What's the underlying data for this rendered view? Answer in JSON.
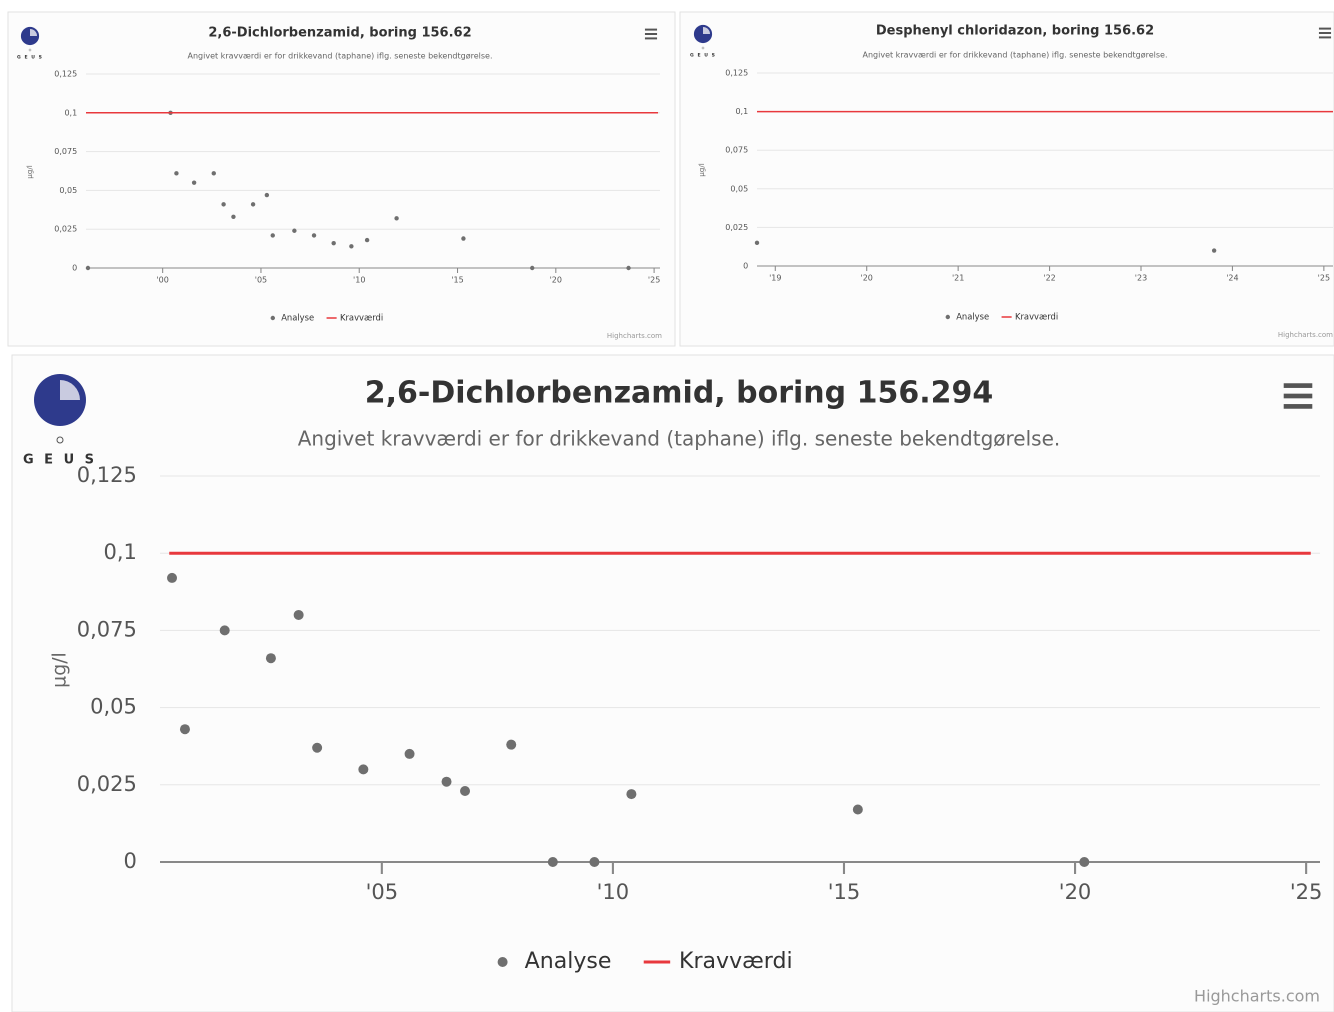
{
  "logo": "G E U S",
  "chart_data": [
    {
      "type": "scatter",
      "title": "2,6-Dichlorbenzamid, boring 156.62",
      "subtitle": "Angivet kravværdi er for drikkevand (taphane) iflg. seneste bekendtgørelse.",
      "y_label": "µg/l",
      "credits": "Highcharts.com",
      "grid": true,
      "xlim": [
        1996.1,
        2025.3
      ],
      "ylim": [
        0,
        0.125
      ],
      "xticks": [
        {
          "value": 2000,
          "label": "'00"
        },
        {
          "value": 2005,
          "label": "'05"
        },
        {
          "value": 2010,
          "label": "'10"
        },
        {
          "value": 2015,
          "label": "'15"
        },
        {
          "value": 2020,
          "label": "'20"
        },
        {
          "value": 2025,
          "label": "'25"
        }
      ],
      "yticks": [
        0,
        {
          "value": 0.025,
          "label": "0,025"
        },
        {
          "value": 0.05,
          "label": "0,05"
        },
        {
          "value": 0.075,
          "label": "0,075"
        },
        {
          "value": 0.1,
          "label": "0,1"
        },
        {
          "value": 0.125,
          "label": "0,125"
        }
      ],
      "series": [
        {
          "name": "Analyse",
          "type": "scatter",
          "color": "#6f6f6f",
          "x": [
            1996.2,
            2000.4,
            2000.7,
            2001.6,
            2002.6,
            2003.1,
            2003.6,
            2004.6,
            2005.3,
            2005.6,
            2006.7,
            2007.7,
            2008.7,
            2009.6,
            2010.4,
            2011.9,
            2015.3,
            2018.8,
            2023.7
          ],
          "values": [
            0,
            0.1,
            0.061,
            0.055,
            0.061,
            0.041,
            0.033,
            0.041,
            0.047,
            0.021,
            0.024,
            0.021,
            0.016,
            0.014,
            0.018,
            0.032,
            0.019,
            0,
            0
          ]
        },
        {
          "name": "Kravværdi",
          "type": "line",
          "color": "#e8383d",
          "x": [
            1996.1,
            2025.2
          ],
          "values": [
            0.1,
            0.1
          ]
        }
      ]
    },
    {
      "type": "scatter",
      "title": "Desphenyl chloridazon, boring 156.62",
      "subtitle": "Angivet kravværdi er for drikkevand (taphane) iflg. seneste bekendtgørelse.",
      "y_label": "µg/l",
      "credits": "Highcharts.com",
      "grid": true,
      "xlim": [
        2018.8,
        2025.1
      ],
      "ylim": [
        0,
        0.125
      ],
      "xticks": [
        {
          "value": 2019,
          "label": "'19"
        },
        {
          "value": 2020,
          "label": "'20"
        },
        {
          "value": 2021,
          "label": "'21"
        },
        {
          "value": 2022,
          "label": "'22"
        },
        {
          "value": 2023,
          "label": "'23"
        },
        {
          "value": 2024,
          "label": "'24"
        },
        {
          "value": 2025,
          "label": "'25"
        }
      ],
      "yticks": [
        0,
        {
          "value": 0.025,
          "label": "0,025"
        },
        {
          "value": 0.05,
          "label": "0,05"
        },
        {
          "value": 0.075,
          "label": "0,075"
        },
        {
          "value": 0.1,
          "label": "0,1"
        },
        {
          "value": 0.125,
          "label": "0,125"
        }
      ],
      "series": [
        {
          "name": "Analyse",
          "type": "scatter",
          "color": "#6f6f6f",
          "x": [
            2018.8,
            2023.8
          ],
          "values": [
            0.015,
            0.01
          ]
        },
        {
          "name": "Kravværdi",
          "type": "line",
          "color": "#e8383d",
          "x": [
            2018.8,
            2025.1
          ],
          "values": [
            0.1,
            0.1
          ]
        }
      ]
    },
    {
      "type": "scatter",
      "title": "2,6-Dichlorbenzamid, boring 156.294",
      "subtitle": "Angivet kravværdi er for drikkevand (taphane) iflg. seneste bekendtgørelse.",
      "y_label": "µg/l",
      "credits": "Highcharts.com",
      "grid": true,
      "xlim": [
        2000.2,
        2025.3
      ],
      "ylim": [
        0,
        0.125
      ],
      "xticks": [
        {
          "value": 2005,
          "label": "'05"
        },
        {
          "value": 2010,
          "label": "'10"
        },
        {
          "value": 2015,
          "label": "'15"
        },
        {
          "value": 2020,
          "label": "'20"
        },
        {
          "value": 2025,
          "label": "'25"
        }
      ],
      "yticks": [
        0,
        {
          "value": 0.025,
          "label": "0,025"
        },
        {
          "value": 0.05,
          "label": "0,05"
        },
        {
          "value": 0.075,
          "label": "0,075"
        },
        {
          "value": 0.1,
          "label": "0,1"
        },
        {
          "value": 0.125,
          "label": "0,125"
        }
      ],
      "series": [
        {
          "name": "Analyse",
          "type": "scatter",
          "color": "#6f6f6f",
          "x": [
            2000.46,
            2000.74,
            2001.6,
            2002.6,
            2003.2,
            2003.6,
            2004.6,
            2005.6,
            2006.4,
            2006.8,
            2007.8,
            2008.7,
            2009.6,
            2010.4,
            2015.3,
            2020.2
          ],
          "values": [
            0.092,
            0.043,
            0.075,
            0.066,
            0.08,
            0.037,
            0.03,
            0.035,
            0.026,
            0.023,
            0.038,
            0,
            0,
            0.022,
            0.017,
            0
          ]
        },
        {
          "name": "Kravværdi",
          "type": "line",
          "color": "#e8383d",
          "x": [
            2000.4,
            2025.1
          ],
          "values": [
            0.1,
            0.1
          ]
        }
      ]
    }
  ]
}
